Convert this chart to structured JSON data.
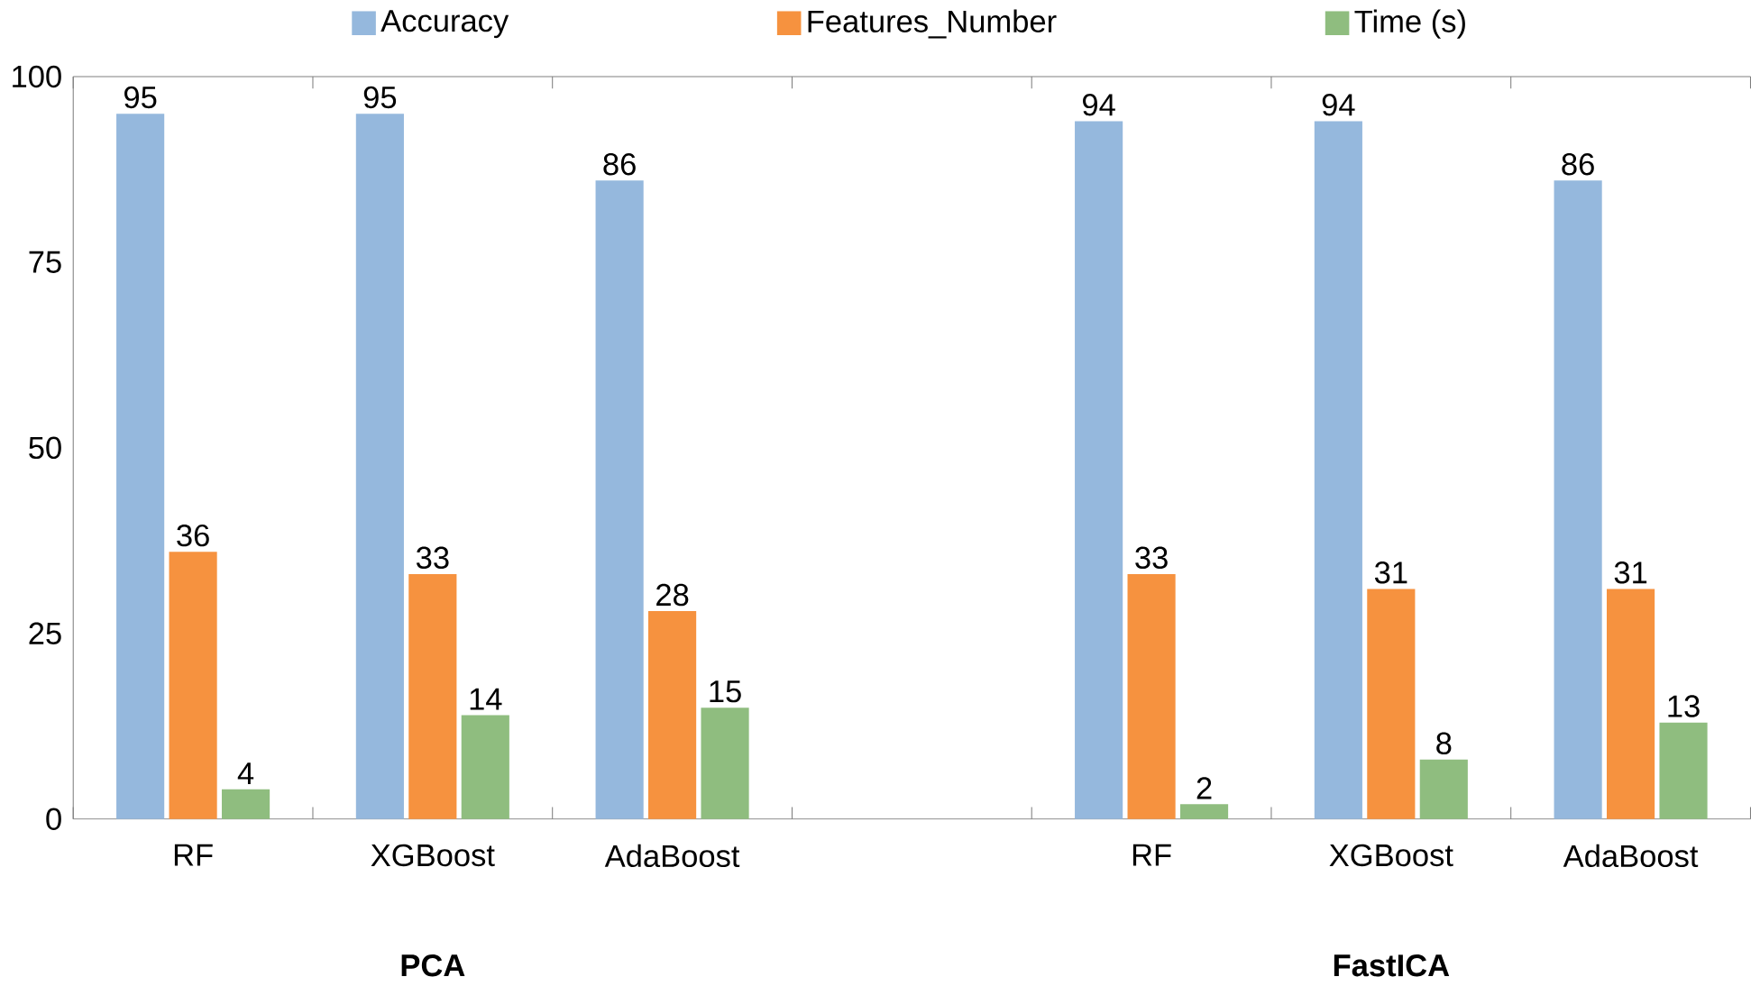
{
  "chart_data": {
    "type": "bar",
    "categories": [
      "RF",
      "XGBoost",
      "AdaBoost",
      null,
      "RF",
      "XGBoost",
      "AdaBoost"
    ],
    "series": [
      {
        "name": "Accuracy",
        "color": "#95b8dd",
        "values": [
          95,
          95,
          86,
          null,
          94,
          94,
          86
        ]
      },
      {
        "name": "Features_Number",
        "color": "#f6923f",
        "values": [
          36,
          33,
          28,
          null,
          33,
          31,
          31
        ]
      },
      {
        "name": "Time (s)",
        "color": "#8fbd7f",
        "values": [
          4,
          14,
          15,
          null,
          2,
          8,
          13
        ]
      }
    ],
    "annotations": [
      "PCA",
      "FastICA"
    ],
    "ylim": [
      0,
      100
    ],
    "yticks": [
      0,
      25,
      50,
      75,
      100
    ],
    "data_labels": true,
    "legend": "top",
    "grid": false
  }
}
